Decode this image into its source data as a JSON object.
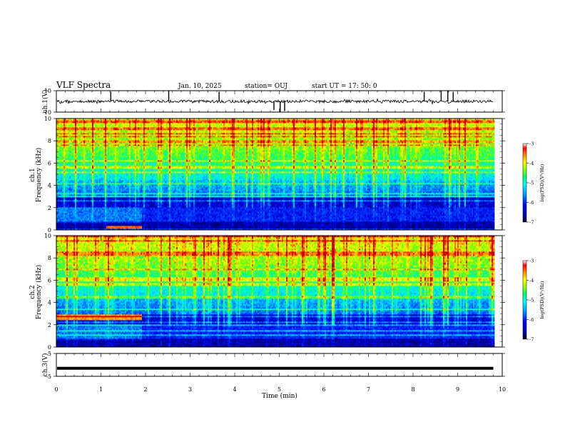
{
  "header": {
    "title": "VLF Spectra",
    "date": "Jan. 10, 2025",
    "station": "station= OUJ",
    "start": "start  UT =   17: 50: 0"
  },
  "chart_data": [
    {
      "type": "line",
      "name": "ch1-waveform",
      "ylabel": "ch.1(V)",
      "ylim": [
        -10,
        10
      ],
      "yticks": [
        "10",
        "-10"
      ],
      "baseline": 0,
      "spikes": [
        {
          "x": 1.22,
          "y": 9
        },
        {
          "x": 2.52,
          "y": 10
        },
        {
          "x": 3.65,
          "y": 9
        },
        {
          "x": 4.88,
          "y": -8
        },
        {
          "x": 5.02,
          "y": -10
        },
        {
          "x": 5.12,
          "y": -9
        },
        {
          "x": 8.25,
          "y": 9
        },
        {
          "x": 8.63,
          "y": 10
        },
        {
          "x": 8.78,
          "y": 10
        },
        {
          "x": 8.9,
          "y": 9
        }
      ]
    },
    {
      "type": "heatmap",
      "name": "ch1-spectrogram",
      "ylabel_top": "ch.1",
      "ylabel": "Frequency (kHz)",
      "ylim": [
        0,
        10
      ],
      "yticks": [
        "0",
        "2",
        "4",
        "6",
        "8",
        "10"
      ],
      "colorbar_label": "log(PSD)(V²/Hz)",
      "colorbar_ticks": [
        "-3",
        "-4",
        "-5",
        "-6",
        "-7"
      ],
      "color_range": [
        -7,
        -3
      ]
    },
    {
      "type": "heatmap",
      "name": "ch2-spectrogram",
      "ylabel_top": "ch.2",
      "ylabel": "Frequency (kHz)",
      "ylim": [
        0,
        10
      ],
      "yticks": [
        "0",
        "2",
        "4",
        "6",
        "8",
        "10"
      ],
      "colorbar_label": "log(PSD)(V²/Hz)",
      "colorbar_ticks": [
        "-3",
        "-4",
        "-5",
        "-6",
        "-7"
      ],
      "color_range": [
        -7,
        -3
      ]
    },
    {
      "type": "line",
      "name": "ch3-waveform",
      "ylabel": "ch.3(V)",
      "ylim": [
        -5,
        5
      ],
      "yticks": [
        "5",
        "-5"
      ],
      "baseline": -1.5,
      "x_end": 9.8
    },
    {
      "type": "axis",
      "name": "time-axis",
      "xlabel": "Time (min)",
      "xlim": [
        0,
        10
      ],
      "xticks": [
        "0",
        "1",
        "2",
        "3",
        "4",
        "5",
        "6",
        "7",
        "8",
        "9",
        "10"
      ],
      "data_end": 9.8
    }
  ],
  "colors": {
    "colormap": [
      "#000080",
      "#0000ff",
      "#0080ff",
      "#00ffff",
      "#00ff80",
      "#80ff00",
      "#ffff00",
      "#ff8000",
      "#ff0000",
      "#800000"
    ]
  }
}
